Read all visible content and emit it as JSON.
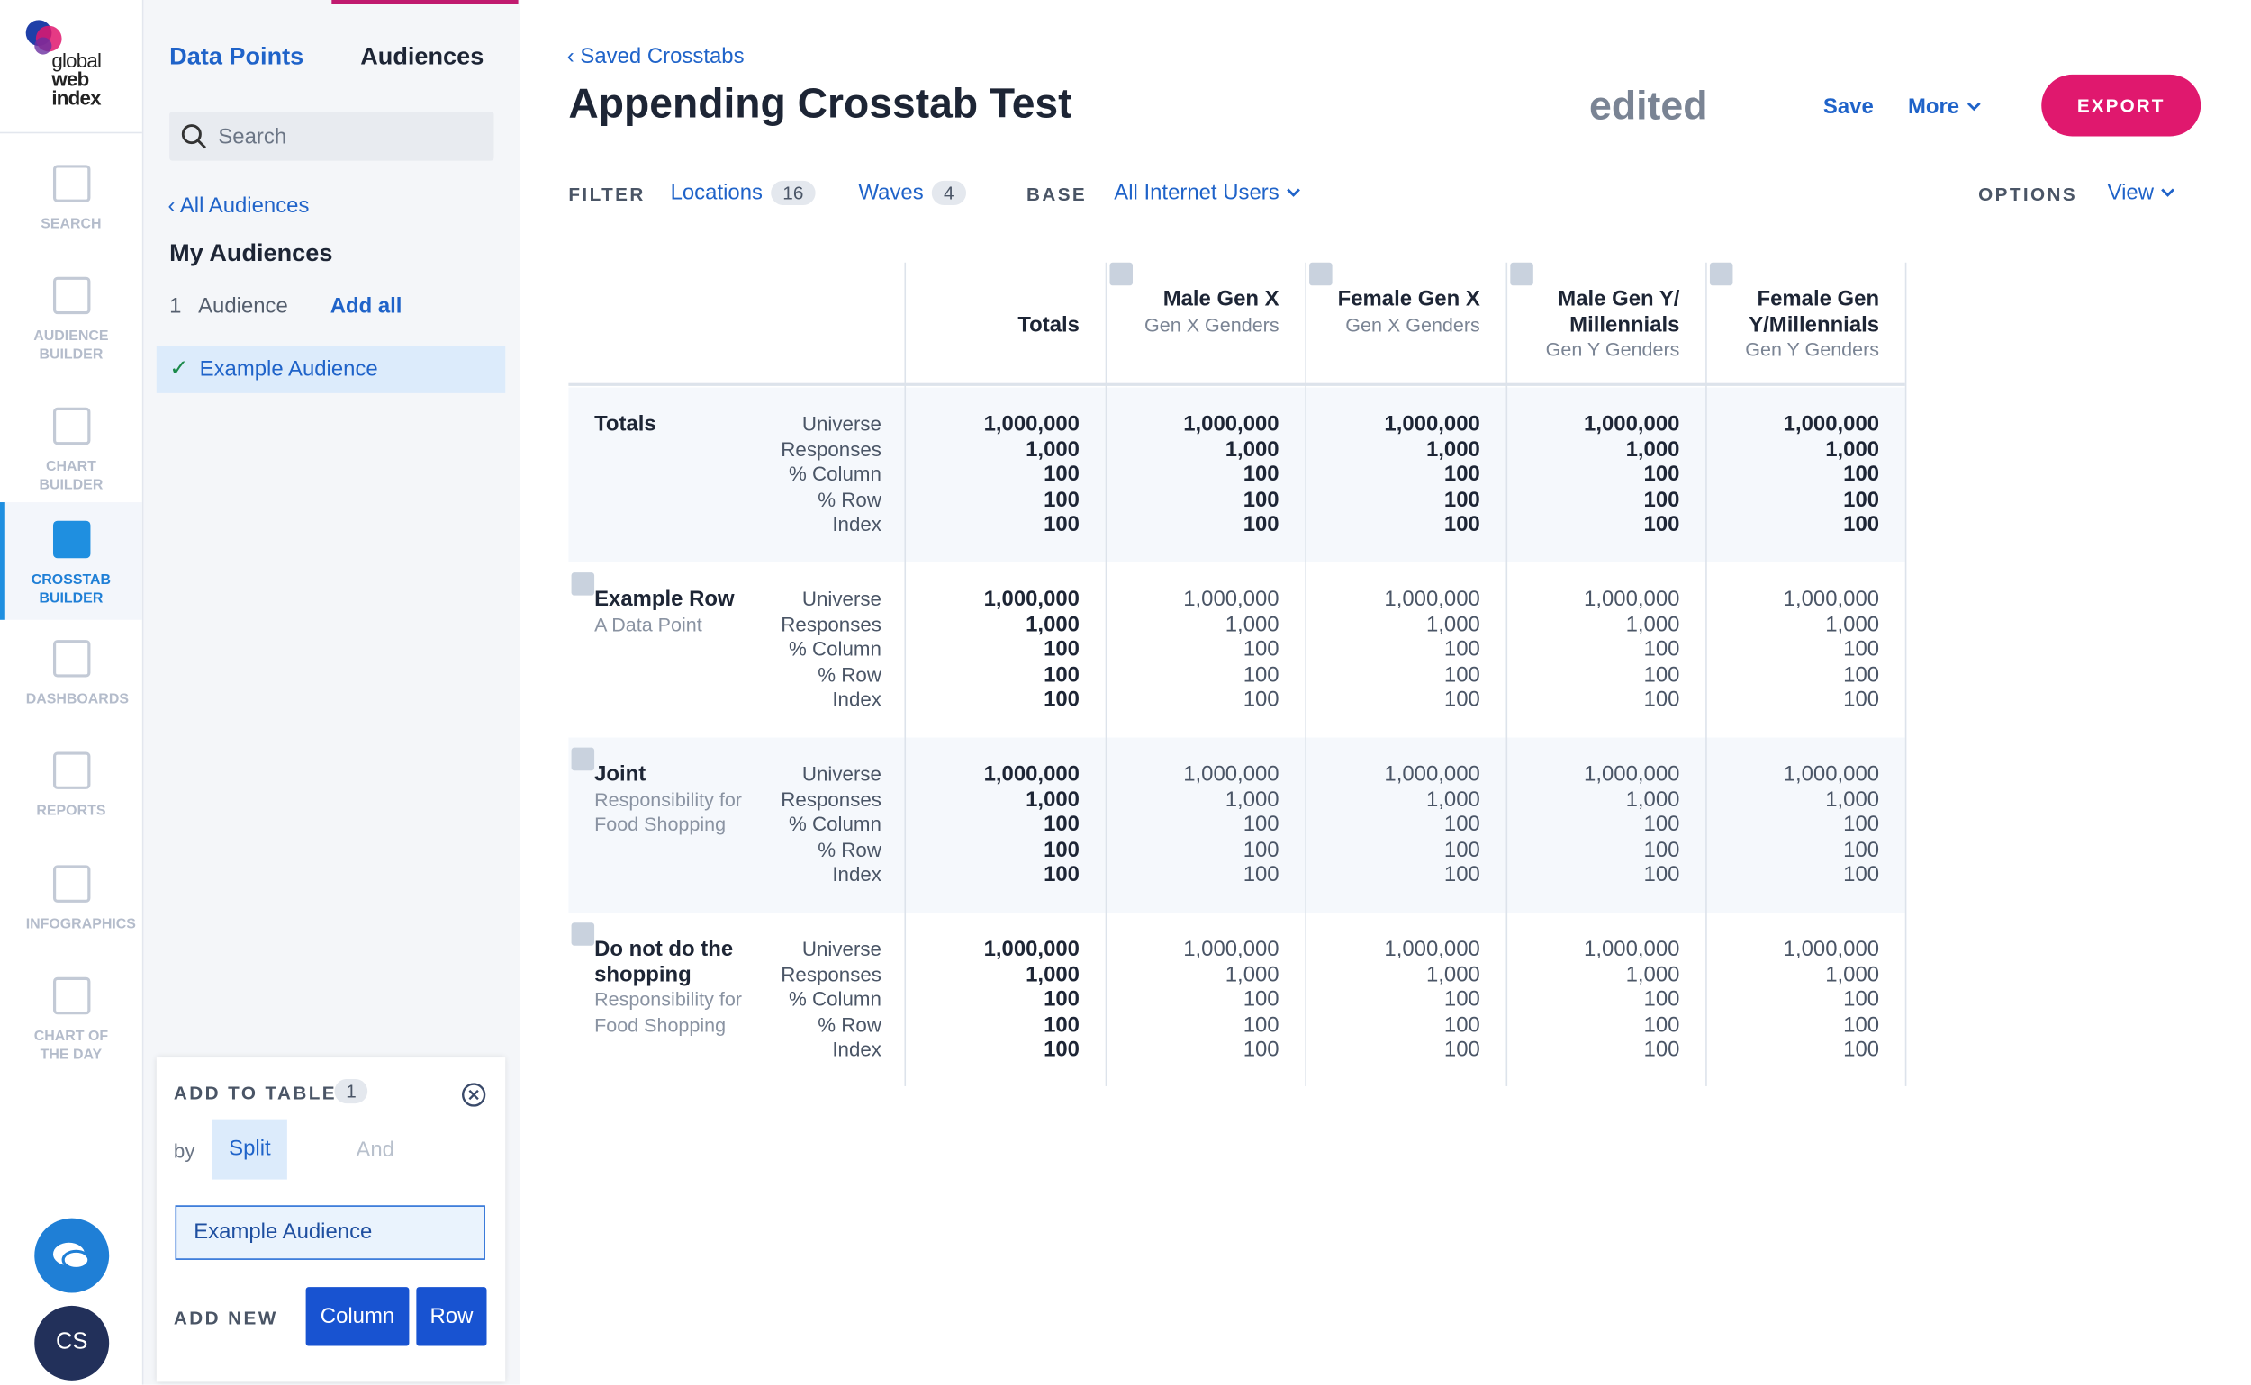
{
  "sidebar": {
    "logo": [
      "global",
      "web",
      "index"
    ],
    "nav": [
      "SEARCH",
      "AUDIENCE BUILDER",
      "CHART BUILDER",
      "CROSSTAB BUILDER",
      "DASHBOARDS",
      "REPORTS",
      "INFOGRAPHICS",
      "CHART OF THE DAY"
    ],
    "avatar": "CS"
  },
  "panel": {
    "tabs": [
      "Data Points",
      "Audiences"
    ],
    "search": "Search",
    "back": "All Audiences",
    "heading": "My Audiences",
    "count": "1",
    "count_label": "Audience",
    "add_all": "Add all",
    "item": "Example Audience",
    "add_to_table": {
      "title": "ADD TO TABLE",
      "count": "1",
      "by": "by",
      "modes": [
        "Split",
        "And"
      ],
      "input": "Example Audience",
      "add_new": "ADD NEW",
      "buttons": [
        "Column",
        "Row"
      ]
    }
  },
  "header": {
    "back": "Saved Crosstabs",
    "title": "Appending Crosstab Test",
    "status": "edited",
    "save": "Save",
    "more": "More",
    "export": "EXPORT"
  },
  "filters": {
    "filter": "FILTER",
    "items": [
      {
        "label": "Locations",
        "count": "16"
      },
      {
        "label": "Waves",
        "count": "4"
      }
    ],
    "base_label": "BASE",
    "base": "All Internet Users",
    "options": "OPTIONS",
    "view": "View"
  },
  "table": {
    "columns": [
      {
        "title": "Totals"
      },
      {
        "title": "Male Gen X",
        "subtitle": "Gen X Genders"
      },
      {
        "title": "Female Gen X",
        "subtitle": "Gen X Genders"
      },
      {
        "title": "Male Gen Y/ Millennials",
        "subtitle": "Gen Y Genders"
      },
      {
        "title": "Female Gen Y/Millennials",
        "subtitle": "Gen Y Genders"
      }
    ],
    "metrics": [
      "Universe",
      "Responses",
      "% Column",
      "% Row",
      "Index"
    ],
    "rows": [
      {
        "title": "Totals",
        "values": [
          [
            "1,000,000",
            "1,000",
            "100",
            "100",
            "100"
          ],
          [
            "1,000,000",
            "1,000",
            "100",
            "100",
            "100"
          ],
          [
            "1,000,000",
            "1,000",
            "100",
            "100",
            "100"
          ],
          [
            "1,000,000",
            "1,000",
            "100",
            "100",
            "100"
          ],
          [
            "1,000,000",
            "1,000",
            "100",
            "100",
            "100"
          ]
        ]
      },
      {
        "title": "Example Row",
        "subtitle": "A Data Point",
        "values": [
          [
            "1,000,000",
            "1,000",
            "100",
            "100",
            "100"
          ],
          [
            "1,000,000",
            "1,000",
            "100",
            "100",
            "100"
          ],
          [
            "1,000,000",
            "1,000",
            "100",
            "100",
            "100"
          ],
          [
            "1,000,000",
            "1,000",
            "100",
            "100",
            "100"
          ],
          [
            "1,000,000",
            "1,000",
            "100",
            "100",
            "100"
          ]
        ]
      },
      {
        "title": "Joint",
        "subtitle": "Responsibility for Food Shopping",
        "values": [
          [
            "1,000,000",
            "1,000",
            "100",
            "100",
            "100"
          ],
          [
            "1,000,000",
            "1,000",
            "100",
            "100",
            "100"
          ],
          [
            "1,000,000",
            "1,000",
            "100",
            "100",
            "100"
          ],
          [
            "1,000,000",
            "1,000",
            "100",
            "100",
            "100"
          ],
          [
            "1,000,000",
            "1,000",
            "100",
            "100",
            "100"
          ]
        ]
      },
      {
        "title": "Do not do the shopping",
        "subtitle": "Responsibility for Food Shopping",
        "values": [
          [
            "1,000,000",
            "1,000",
            "100",
            "100",
            "100"
          ],
          [
            "1,000,000",
            "1,000",
            "100",
            "100",
            "100"
          ],
          [
            "1,000,000",
            "1,000",
            "100",
            "100",
            "100"
          ],
          [
            "1,000,000",
            "1,000",
            "100",
            "100",
            "100"
          ],
          [
            "1,000,000",
            "1,000",
            "100",
            "100",
            "100"
          ]
        ]
      }
    ]
  }
}
